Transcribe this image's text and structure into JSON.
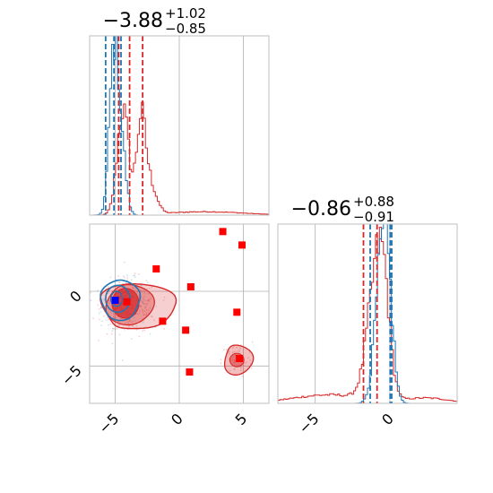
{
  "chart_data": {
    "type": "corner",
    "colors": {
      "red": "#d62728",
      "blue": "#1f77b4",
      "grid": "#b0b0b0"
    },
    "params": [
      {
        "title": {
          "median": "−3.88",
          "plus": "+1.02",
          "minus": "−0.85"
        },
        "range": [
          -7,
          7
        ],
        "ticks": [
          {
            "value": -5,
            "label": "−5"
          },
          {
            "value": 0,
            "label": "0"
          },
          {
            "value": 5,
            "label": "5"
          }
        ],
        "quantile_lines": {
          "red": [
            -4.73,
            -3.88,
            -2.86
          ],
          "blue": [
            -5.75,
            -5.1,
            -4.55
          ]
        }
      },
      {
        "title": {
          "median": "−0.86",
          "plus": "+0.88",
          "minus": "−0.91"
        },
        "range": [
          -7.5,
          4.5
        ],
        "ticks": [
          {
            "value": -5,
            "label": "−5"
          },
          {
            "value": 0,
            "label": "0"
          }
        ],
        "quantile_lines": {
          "red": [
            -1.77,
            -0.86,
            0.02
          ],
          "blue": [
            -1.32,
            0.02,
            0.12
          ]
        }
      }
    ],
    "squares_red": [
      [
        3.4,
        4.0
      ],
      [
        4.9,
        3.1
      ],
      [
        -1.8,
        1.5
      ],
      [
        0.9,
        0.3
      ],
      [
        -4.1,
        -0.7
      ],
      [
        -1.3,
        -2.0
      ],
      [
        4.5,
        -1.4
      ],
      [
        0.5,
        -2.6
      ],
      [
        0.8,
        -5.4
      ],
      [
        4.7,
        -4.5
      ]
    ],
    "squares_blue": [
      [
        -5.0,
        -0.6
      ]
    ]
  }
}
